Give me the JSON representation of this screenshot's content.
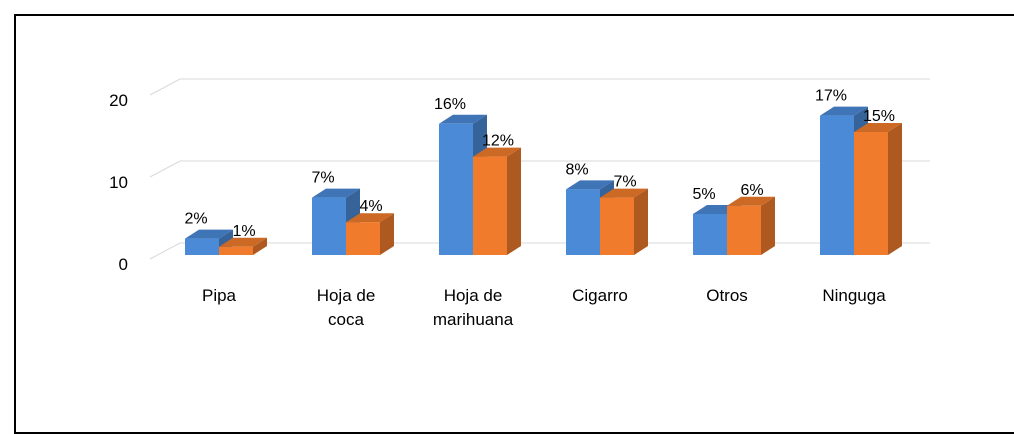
{
  "chart_data": {
    "type": "bar",
    "style": "3d-clustered-column",
    "categories": [
      [
        "Pipa"
      ],
      [
        "Hoja de",
        "coca"
      ],
      [
        "Hoja de",
        "marihuana"
      ],
      [
        "Cigarro"
      ],
      [
        "Otros"
      ],
      [
        "Ninguga"
      ]
    ],
    "series": [
      {
        "values": [
          2,
          7,
          16,
          8,
          5,
          17
        ],
        "labels": [
          "2%",
          "7%",
          "16%",
          "8%",
          "5%",
          "17%"
        ],
        "color": "#4a8ad6"
      },
      {
        "values": [
          1,
          4,
          12,
          7,
          6,
          15
        ],
        "labels": [
          "1%",
          "4%",
          "12%",
          "7%",
          "6%",
          "15%"
        ],
        "color": "#f07b2c"
      }
    ],
    "y_ticks": [
      "0",
      "10",
      "20"
    ],
    "ylim": [
      0,
      20
    ],
    "grid": true,
    "legend": "none"
  }
}
